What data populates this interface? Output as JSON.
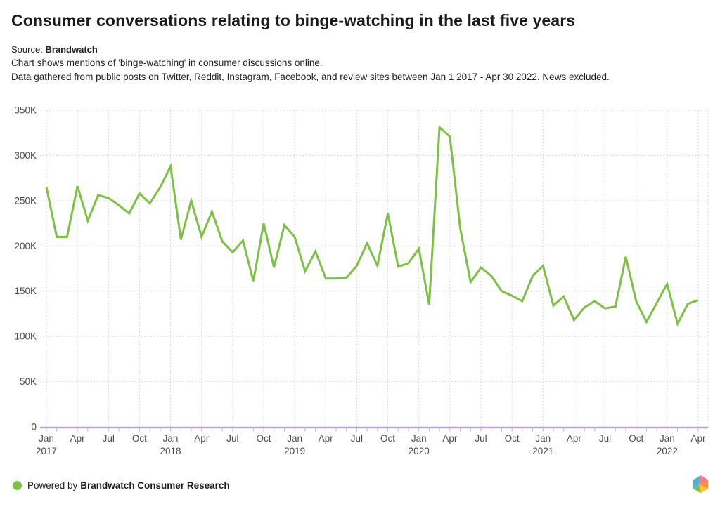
{
  "header": {
    "title": "Consumer conversations relating to binge-watching in the last five years",
    "source_label": "Source:",
    "source_value": "Brandwatch",
    "description_line1": "Chart shows mentions of 'binge-watching' in consumer discussions online.",
    "description_line2": "Data gathered from public posts on Twitter, Reddit, Instagram, Facebook, and review sites between Jan 1 2017 - Apr 30 2022. News excluded."
  },
  "chart_data": {
    "type": "line",
    "title": "Consumer conversations relating to binge-watching in the last five years",
    "unit": "mentions (thousands)",
    "x": [
      "Jan 2017",
      "Feb 2017",
      "Mar 2017",
      "Apr 2017",
      "May 2017",
      "Jun 2017",
      "Jul 2017",
      "Aug 2017",
      "Sep 2017",
      "Oct 2017",
      "Nov 2017",
      "Dec 2017",
      "Jan 2018",
      "Feb 2018",
      "Mar 2018",
      "Apr 2018",
      "May 2018",
      "Jun 2018",
      "Jul 2018",
      "Aug 2018",
      "Sep 2018",
      "Oct 2018",
      "Nov 2018",
      "Dec 2018",
      "Jan 2019",
      "Feb 2019",
      "Mar 2019",
      "Apr 2019",
      "May 2019",
      "Jun 2019",
      "Jul 2019",
      "Aug 2019",
      "Sep 2019",
      "Oct 2019",
      "Nov 2019",
      "Dec 2019",
      "Jan 2020",
      "Feb 2020",
      "Mar 2020",
      "Apr 2020",
      "May 2020",
      "Jun 2020",
      "Jul 2020",
      "Aug 2020",
      "Sep 2020",
      "Oct 2020",
      "Nov 2020",
      "Dec 2020",
      "Jan 2021",
      "Feb 2021",
      "Mar 2021",
      "Apr 2021",
      "May 2021",
      "Jun 2021",
      "Jul 2021",
      "Aug 2021",
      "Sep 2021",
      "Oct 2021",
      "Nov 2021",
      "Dec 2021",
      "Jan 2022",
      "Feb 2022",
      "Mar 2022",
      "Apr 2022"
    ],
    "series": [
      {
        "name": "Mentions of 'binge-watching'",
        "color": "#7dc142",
        "values_thousands": [
          265,
          210,
          210,
          266,
          228,
          256,
          253,
          245,
          236,
          258,
          247,
          265,
          288,
          207,
          250,
          210,
          238,
          205,
          193,
          206,
          161,
          225,
          176,
          223,
          210,
          172,
          194,
          164,
          164,
          165,
          178,
          203,
          178,
          236,
          177,
          181,
          197,
          135,
          331,
          321,
          219,
          160,
          176,
          167,
          150,
          145,
          139,
          167,
          178,
          134,
          144,
          118,
          132,
          139,
          131,
          133,
          188,
          139,
          116,
          137,
          158,
          114,
          136,
          140
        ]
      }
    ],
    "ylim_thousands": [
      0,
      350
    ],
    "y_tick_values_thousands": [
      0,
      50,
      100,
      150,
      200,
      250,
      300,
      350
    ],
    "y_tick_labels": [
      "0",
      "50K",
      "100K",
      "150K",
      "200K",
      "250K",
      "300K",
      "350K"
    ],
    "x_tick_every_months": 3,
    "x_tick_month_labels": [
      "Jan",
      "Apr",
      "Jul",
      "Oct"
    ],
    "x_year_labels": [
      "2017",
      "2018",
      "2019",
      "2020",
      "2021",
      "2022"
    ],
    "grid": "dotted",
    "legend_position": "none",
    "colors": {
      "line": "#7dc142",
      "grid": "#cccccc",
      "axis_line": "#b3a1d1",
      "axis_tick": "#b9a9d6",
      "axis_label": "#4d4d4d"
    }
  },
  "footer": {
    "powered_by": "Powered by",
    "brand": "Brandwatch Consumer Research",
    "dot_color": "#7dc142"
  },
  "logo": {
    "name": "brandwatch-hexagon",
    "colors": {
      "blue": "#55aeda",
      "pink": "#f2798c",
      "orange": "#f98e44",
      "yellow": "#fcc230",
      "green": "#82c341"
    }
  }
}
